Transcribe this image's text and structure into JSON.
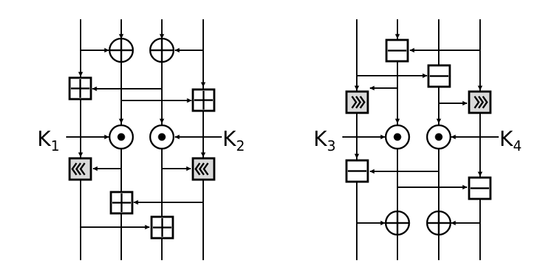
{
  "left_network": {
    "key_left": {
      "letter": "K",
      "index": "1"
    },
    "key_right": {
      "letter": "K",
      "index": "2"
    }
  },
  "right_network": {
    "key_left": {
      "letter": "K",
      "index": "3"
    },
    "key_right": {
      "letter": "K",
      "index": "4"
    }
  },
  "icons": {
    "xor": "circled-plus",
    "multiply": "circled-dot",
    "add": "boxed-plus",
    "subtract": "boxed-minus",
    "rotate_left": "boxed-left-chevrons",
    "rotate_right": "boxed-right-chevrons"
  }
}
